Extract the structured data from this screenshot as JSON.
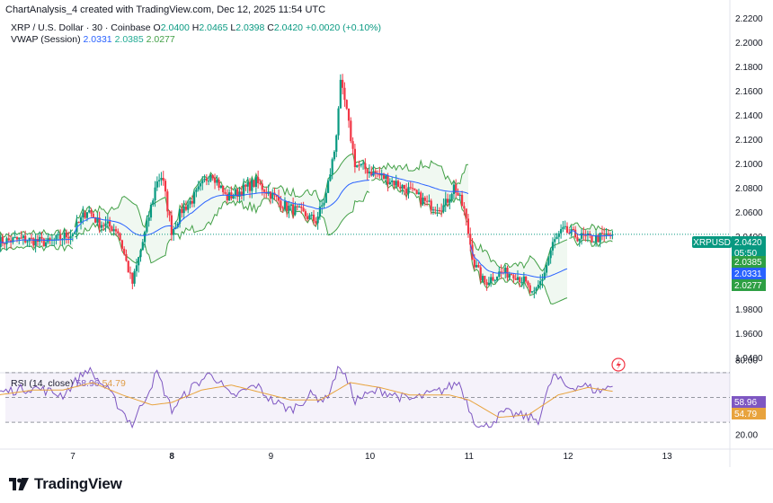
{
  "header": {
    "text": "ChartAnalysis_4 created with TradingView.com, Dec 12, 2025 11:54 UTC"
  },
  "legend": {
    "symbol": "XRP / U.S. Dollar · 30 · Coinbase",
    "o_label": "O",
    "o": "2.0400",
    "h_label": "H",
    "h": "2.0465",
    "l_label": "L",
    "l": "2.0398",
    "c_label": "C",
    "c": "2.0420",
    "change": "+0.0020 (+0.10%)",
    "vwap_label": "VWAP (Session)",
    "vwap_values": [
      "2.0331",
      "2.0385",
      "2.0277"
    ],
    "rsi_label": "RSI (14, close)",
    "rsi_values": [
      "58.96",
      "54.79"
    ]
  },
  "price_tags": {
    "symbol": "XRPUSD",
    "price": "2.0420",
    "countdown": "05:50",
    "vwap_upper": "2.0385",
    "vwap_mid": "2.0331",
    "vwap_lower": "2.0277",
    "rsi": "58.96",
    "rsi_ma": "54.79"
  },
  "brand": {
    "name": "TradingView"
  },
  "colors": {
    "up": "#089981",
    "down": "#f23645",
    "vwap": "#2962ff",
    "band": "#43a047",
    "rsi": "#7e57c2",
    "rsi_ma": "#e8a33d",
    "tag_blue": "#2962ff"
  },
  "chart_data": [
    {
      "type": "candlestick",
      "title": "XRP / U.S. Dollar · 30 · Coinbase",
      "x": {
        "ticks": [
          "7",
          "8",
          "9",
          "10",
          "11",
          "12",
          "13"
        ],
        "bold_tick": "8"
      },
      "ylim": [
        1.93,
        2.225
      ],
      "yticks": [
        "2.2200",
        "2.2000",
        "2.1800",
        "2.1600",
        "2.1400",
        "2.1200",
        "2.1000",
        "2.0800",
        "2.0600",
        "2.0400",
        "2.0200",
        "2.0000",
        "1.9800",
        "1.9600",
        "1.9400"
      ],
      "close_path": [
        [
          6.25,
          2.036
        ],
        [
          6.5,
          2.038
        ],
        [
          6.75,
          2.035
        ],
        [
          6.9,
          2.04
        ],
        [
          7.0,
          2.043
        ],
        [
          7.15,
          2.063
        ],
        [
          7.25,
          2.052
        ],
        [
          7.45,
          2.046
        ],
        [
          7.6,
          2.001
        ],
        [
          7.75,
          2.05
        ],
        [
          7.85,
          2.087
        ],
        [
          7.9,
          2.09
        ],
        [
          8.0,
          2.044
        ],
        [
          8.1,
          2.062
        ],
        [
          8.2,
          2.07
        ],
        [
          8.4,
          2.094
        ],
        [
          8.55,
          2.072
        ],
        [
          8.7,
          2.078
        ],
        [
          8.85,
          2.085
        ],
        [
          9.0,
          2.075
        ],
        [
          9.15,
          2.065
        ],
        [
          9.3,
          2.06
        ],
        [
          9.45,
          2.053
        ],
        [
          9.55,
          2.072
        ],
        [
          9.65,
          2.115
        ],
        [
          9.7,
          2.166
        ],
        [
          9.75,
          2.15
        ],
        [
          9.85,
          2.1
        ],
        [
          10.0,
          2.094
        ],
        [
          10.2,
          2.087
        ],
        [
          10.4,
          2.078
        ],
        [
          10.6,
          2.066
        ],
        [
          10.75,
          2.065
        ],
        [
          10.85,
          2.082
        ],
        [
          10.95,
          2.062
        ],
        [
          11.05,
          2.018
        ],
        [
          11.15,
          2.002
        ],
        [
          11.3,
          2.01
        ],
        [
          11.45,
          2.01
        ],
        [
          11.55,
          2.004
        ],
        [
          11.65,
          1.99
        ],
        [
          11.75,
          2.008
        ],
        [
          11.85,
          2.035
        ],
        [
          11.95,
          2.045
        ],
        [
          12.1,
          2.04
        ],
        [
          12.25,
          2.038
        ],
        [
          12.35,
          2.04
        ],
        [
          12.45,
          2.042
        ]
      ],
      "overlays": {
        "vwap_session": {
          "last": 2.0331
        },
        "vwap_upper": {
          "last": 2.0385
        },
        "vwap_lower": {
          "last": 2.0277
        }
      },
      "last_price": 2.042,
      "annotations": [
        "XRPUSD 2.0420",
        "05:50"
      ]
    },
    {
      "type": "line",
      "title": "RSI (14, close)",
      "ylim": [
        20,
        80
      ],
      "yticks": [
        "80.00",
        "40.00",
        "20.00"
      ],
      "levels": [
        70,
        50,
        30
      ],
      "series": [
        {
          "name": "RSI (14, close)",
          "last": 58.96,
          "values": [
            [
              6.25,
              54
            ],
            [
              6.6,
              58
            ],
            [
              6.9,
              52
            ],
            [
              7.15,
              73
            ],
            [
              7.35,
              56
            ],
            [
              7.6,
              28
            ],
            [
              7.85,
              70
            ],
            [
              8.0,
              40
            ],
            [
              8.2,
              58
            ],
            [
              8.4,
              70
            ],
            [
              8.6,
              50
            ],
            [
              8.85,
              60
            ],
            [
              9.0,
              48
            ],
            [
              9.2,
              40
            ],
            [
              9.4,
              52
            ],
            [
              9.55,
              48
            ],
            [
              9.7,
              76
            ],
            [
              9.85,
              48
            ],
            [
              10.1,
              56
            ],
            [
              10.4,
              48
            ],
            [
              10.7,
              55
            ],
            [
              10.9,
              62
            ],
            [
              11.05,
              32
            ],
            [
              11.15,
              25
            ],
            [
              11.35,
              38
            ],
            [
              11.6,
              34
            ],
            [
              11.7,
              32
            ],
            [
              11.85,
              68
            ],
            [
              12.0,
              58
            ],
            [
              12.15,
              60
            ],
            [
              12.3,
              55
            ],
            [
              12.45,
              59
            ]
          ]
        },
        {
          "name": "RSI-based MA",
          "last": 54.79,
          "values": [
            [
              6.25,
              52
            ],
            [
              6.6,
              56
            ],
            [
              6.9,
              56
            ],
            [
              7.2,
              62
            ],
            [
              7.5,
              52
            ],
            [
              7.8,
              44
            ],
            [
              8.0,
              46
            ],
            [
              8.3,
              56
            ],
            [
              8.6,
              60
            ],
            [
              8.9,
              54
            ],
            [
              9.2,
              48
            ],
            [
              9.5,
              48
            ],
            [
              9.8,
              62
            ],
            [
              10.1,
              58
            ],
            [
              10.4,
              52
            ],
            [
              10.8,
              52
            ],
            [
              11.0,
              48
            ],
            [
              11.3,
              34
            ],
            [
              11.6,
              36
            ],
            [
              11.9,
              52
            ],
            [
              12.2,
              58
            ],
            [
              12.45,
              55
            ]
          ]
        }
      ]
    }
  ]
}
